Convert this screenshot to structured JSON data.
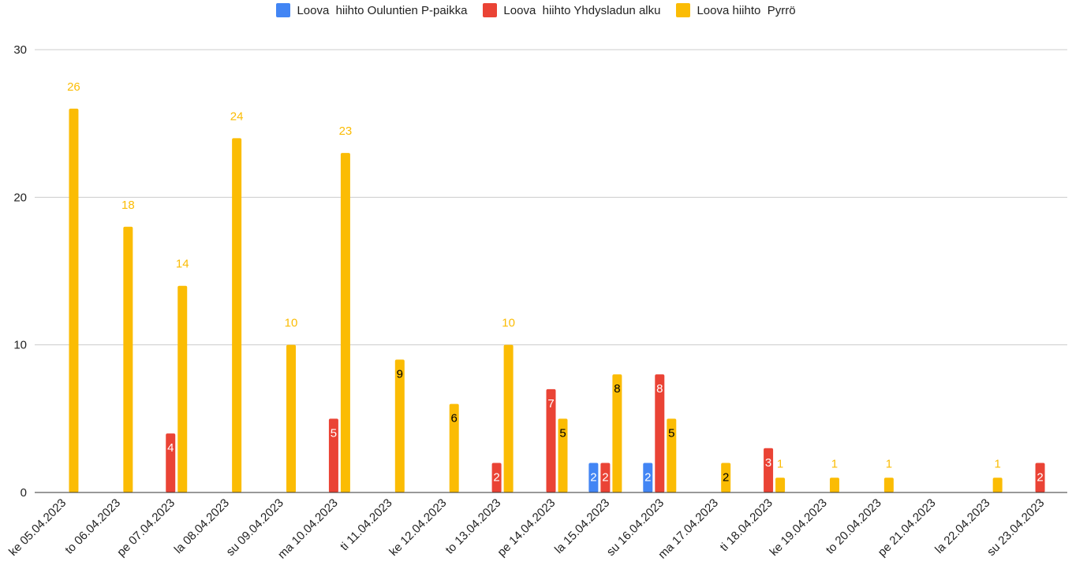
{
  "chart_data": {
    "type": "bar",
    "title": "",
    "xlabel": "",
    "ylabel": "",
    "ylim": [
      0,
      30
    ],
    "yticks": [
      0,
      10,
      20,
      30
    ],
    "grid": true,
    "legend_position": "top-center",
    "categories": [
      "ke 05.04.2023",
      "to 06.04.2023",
      "pe 07.04.2023",
      "la 08.04.2023",
      "su 09.04.2023",
      "ma 10.04.2023",
      "ti 11.04.2023",
      "ke 12.04.2023",
      "to 13.04.2023",
      "pe 14.04.2023",
      "la 15.04.2023",
      "su 16.04.2023",
      "ma 17.04.2023",
      "ti 18.04.2023",
      "ke 19.04.2023",
      "to 20.04.2023",
      "pe 21.04.2023",
      "la 22.04.2023",
      "su 23.04.2023"
    ],
    "series": [
      {
        "name": "Loova  hiihto Ouluntien P-paikka",
        "color": "#4285F4",
        "values": [
          null,
          null,
          null,
          null,
          null,
          null,
          null,
          null,
          null,
          null,
          2,
          2,
          null,
          null,
          null,
          null,
          null,
          null,
          null
        ]
      },
      {
        "name": "Loova  hiihto Yhdysladun alku",
        "color": "#EA4335",
        "values": [
          null,
          null,
          4,
          null,
          null,
          5,
          null,
          null,
          2,
          7,
          2,
          8,
          null,
          3,
          null,
          null,
          null,
          null,
          2
        ]
      },
      {
        "name": "Loova hiihto  Pyrrö",
        "color": "#FBBC04",
        "values": [
          26,
          18,
          14,
          24,
          10,
          23,
          9,
          6,
          10,
          5,
          8,
          5,
          2,
          1,
          1,
          1,
          null,
          1,
          null
        ]
      }
    ]
  }
}
